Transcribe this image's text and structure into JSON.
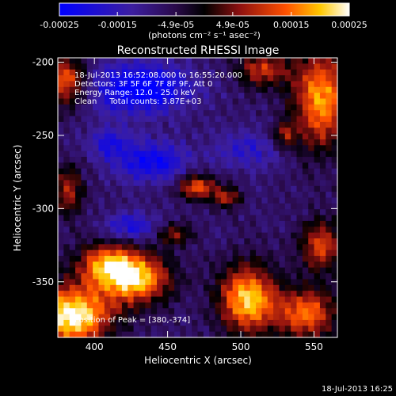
{
  "chart_data": {
    "type": "heatmap",
    "title": "Reconstructed RHESSI Image",
    "xlabel": "Heliocentric X (arcsec)",
    "ylabel": "Heliocentric Y (arcsec)",
    "xlim": [
      375,
      566
    ],
    "ylim": [
      -388,
      -197
    ],
    "x_ticks": [
      400,
      450,
      500,
      550
    ],
    "y_ticks": [
      -200,
      -250,
      -300,
      -350
    ],
    "info_lines": [
      "18-Jul-2013 16:52:08.000 to 16:55:20.000",
      "Detectors: 3F 5F 6F 7F 8F 9F, Att 0",
      "Energy Range: 12.0 - 25.0 keV",
      "Clean     Total counts: 3.87E+03"
    ],
    "peak_label": "Position of Peak = [380,-374]",
    "peak": {
      "x": 380,
      "y": -374
    },
    "colorbar": {
      "min": -0.00025,
      "max": 0.00025,
      "tick_values": [
        -0.00025,
        -0.00015,
        -4.9e-05,
        4.9e-05,
        0.00015,
        0.00025
      ],
      "tick_labels": [
        "-0.00025",
        "-0.00015",
        "-4.9e-05",
        "4.9e-05",
        "0.00015",
        "0.00025"
      ],
      "unit_label": "(photons cm⁻² s⁻¹ asec⁻²)"
    },
    "hot_regions": [
      {
        "x": 385,
        "y": -373,
        "sx": 18,
        "sy": 14,
        "amp": 1.35
      },
      {
        "x": 428,
        "y": -348,
        "sx": 16,
        "sy": 12,
        "amp": 1.15
      },
      {
        "x": 408,
        "y": -338,
        "sx": 14,
        "sy": 10,
        "amp": 0.85
      },
      {
        "x": 505,
        "y": -362,
        "sx": 14,
        "sy": 16,
        "amp": 1.15
      },
      {
        "x": 545,
        "y": -372,
        "sx": 14,
        "sy": 12,
        "amp": 0.9
      },
      {
        "x": 555,
        "y": -325,
        "sx": 10,
        "sy": 12,
        "amp": 0.75
      },
      {
        "x": 555,
        "y": -225,
        "sx": 14,
        "sy": 24,
        "amp": 1.0
      },
      {
        "x": 515,
        "y": -205,
        "sx": 12,
        "sy": 8,
        "amp": 0.7
      },
      {
        "x": 380,
        "y": -213,
        "sx": 10,
        "sy": 12,
        "amp": 0.85
      },
      {
        "x": 470,
        "y": -285,
        "sx": 9,
        "sy": 6,
        "amp": 0.85
      },
      {
        "x": 490,
        "y": -292,
        "sx": 7,
        "sy": 5,
        "amp": 0.6
      },
      {
        "x": 382,
        "y": -288,
        "sx": 7,
        "sy": 12,
        "amp": 0.6
      },
      {
        "x": 455,
        "y": -318,
        "sx": 8,
        "sy": 5,
        "amp": 0.55
      },
      {
        "x": 530,
        "y": -250,
        "sx": 6,
        "sy": 6,
        "amp": 0.5
      }
    ],
    "cold_regions": [
      {
        "x": 432,
        "y": -218,
        "sx": 24,
        "sy": 12,
        "amp": -0.8
      },
      {
        "x": 440,
        "y": -268,
        "sx": 18,
        "sy": 10,
        "amp": -0.6
      },
      {
        "x": 410,
        "y": -255,
        "sx": 10,
        "sy": 8,
        "amp": -0.45
      },
      {
        "x": 425,
        "y": -312,
        "sx": 12,
        "sy": 7,
        "amp": -0.5
      },
      {
        "x": 505,
        "y": -260,
        "sx": 16,
        "sy": 10,
        "amp": -0.35
      }
    ],
    "timestamp": "18-Jul-2013 16:25"
  }
}
